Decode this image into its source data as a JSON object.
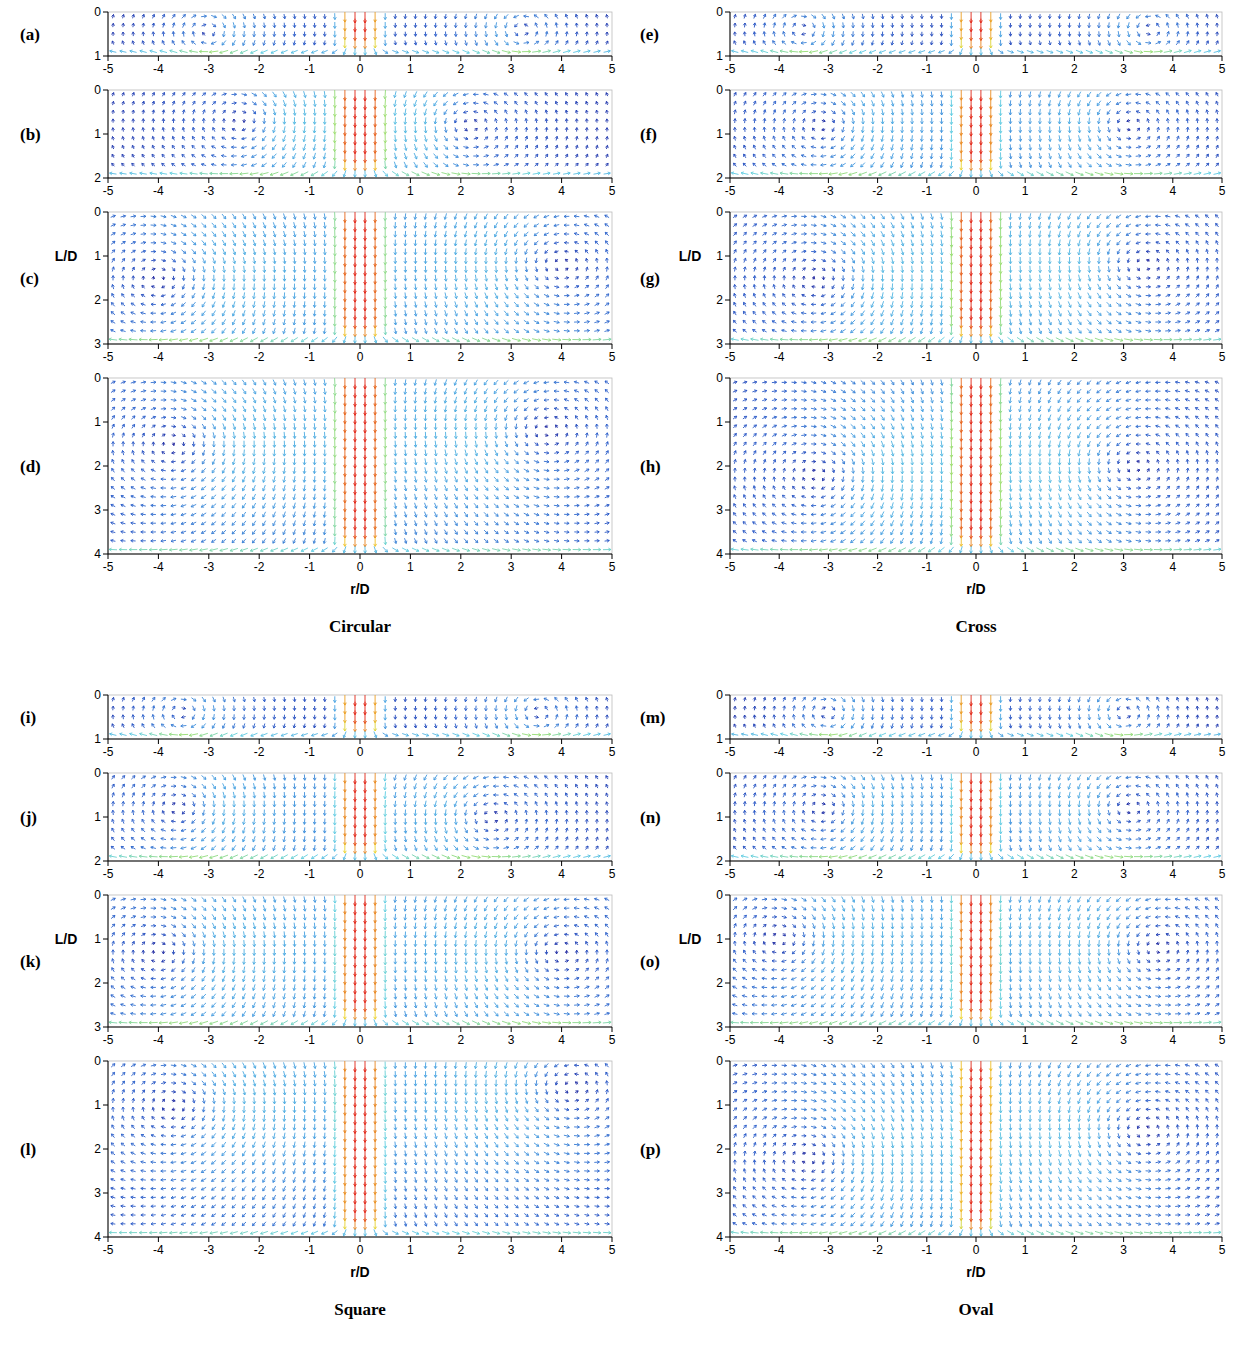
{
  "chart_data": [
    {
      "type": "vector_field",
      "title": "Circular",
      "xlabel": "r/D",
      "ylabel": "L/D",
      "panels": [
        {
          "label": "(a)",
          "xlim": [
            -5,
            5
          ],
          "ylim": [
            0,
            1
          ],
          "xticks": [
            -5,
            -4,
            -3,
            -2,
            -1,
            0,
            1,
            2,
            3,
            4,
            5
          ],
          "yticks": [
            0,
            1
          ],
          "jet": [
            -0.45,
            0.45
          ],
          "vortices": [
            {
              "r": -3,
              "l": 0.45
            },
            {
              "r": 3.2,
              "l": 0.4
            }
          ]
        },
        {
          "label": "(b)",
          "xlim": [
            -5,
            5
          ],
          "ylim": [
            0,
            2
          ],
          "xticks": [
            -5,
            -4,
            -3,
            -2,
            -1,
            0,
            1,
            2,
            3,
            4,
            5
          ],
          "yticks": [
            0,
            1,
            2
          ],
          "jet": [
            -0.5,
            0.5
          ],
          "vortices": [
            {
              "r": -2.2,
              "l": 0.7
            },
            {
              "r": 2.0,
              "l": 0.8
            }
          ]
        },
        {
          "label": "(c)",
          "xlim": [
            -5,
            5
          ],
          "ylim": [
            0,
            3
          ],
          "xticks": [
            -5,
            -4,
            -3,
            -2,
            -1,
            0,
            1,
            2,
            3,
            4,
            5
          ],
          "yticks": [
            0,
            1,
            2,
            3
          ],
          "jet": [
            -0.5,
            0.5
          ],
          "vortices": [
            {
              "r": -3.8,
              "l": 1.5
            },
            {
              "r": 3.8,
              "l": 1.2
            }
          ]
        },
        {
          "label": "(d)",
          "xlim": [
            -5,
            5
          ],
          "ylim": [
            0,
            4
          ],
          "xticks": [
            -5,
            -4,
            -3,
            -2,
            -1,
            0,
            1,
            2,
            3,
            4,
            5
          ],
          "yticks": [
            0,
            1,
            2,
            3,
            4
          ],
          "jet": [
            -0.5,
            0.5
          ],
          "vortices": [
            {
              "r": -3.5,
              "l": 1.5
            },
            {
              "r": 3.5,
              "l": 1.2
            }
          ]
        }
      ]
    },
    {
      "type": "vector_field",
      "title": "Cross",
      "xlabel": "r/D",
      "ylabel": "L/D",
      "panels": [
        {
          "label": "(e)",
          "xlim": [
            -5,
            5
          ],
          "ylim": [
            0,
            1
          ],
          "xticks": [
            -5,
            -4,
            -3,
            -2,
            -1,
            0,
            1,
            2,
            3,
            4,
            5
          ],
          "yticks": [
            0,
            1
          ],
          "jet": [
            -0.45,
            0.45
          ],
          "vortices": [
            {
              "r": -3.5,
              "l": 0.4
            },
            {
              "r": 3.5,
              "l": 0.4
            }
          ]
        },
        {
          "label": "(f)",
          "xlim": [
            -5,
            5
          ],
          "ylim": [
            0,
            2
          ],
          "xticks": [
            -5,
            -4,
            -3,
            -2,
            -1,
            0,
            1,
            2,
            3,
            4,
            5
          ],
          "yticks": [
            0,
            1,
            2
          ],
          "jet": [
            -0.45,
            0.45
          ],
          "vortices": [
            {
              "r": -3,
              "l": 0.8
            },
            {
              "r": 3,
              "l": 0.8
            }
          ]
        },
        {
          "label": "(g)",
          "xlim": [
            -5,
            5
          ],
          "ylim": [
            0,
            3
          ],
          "xticks": [
            -5,
            -4,
            -3,
            -2,
            -1,
            0,
            1,
            2,
            3,
            4,
            5
          ],
          "yticks": [
            0,
            1,
            2,
            3
          ],
          "jet": [
            -0.5,
            0.5
          ],
          "vortices": [
            {
              "r": -3,
              "l": 1.5
            },
            {
              "r": 3.2,
              "l": 1.2
            }
          ]
        },
        {
          "label": "(h)",
          "xlim": [
            -5,
            5
          ],
          "ylim": [
            0,
            4
          ],
          "xticks": [
            -5,
            -4,
            -3,
            -2,
            -1,
            0,
            1,
            2,
            3,
            4,
            5
          ],
          "yticks": [
            0,
            1,
            2,
            3,
            4
          ],
          "jet": [
            -0.5,
            0.5
          ],
          "vortices": [
            {
              "r": -3,
              "l": 2.2
            },
            {
              "r": 3,
              "l": 2.0
            }
          ]
        }
      ]
    },
    {
      "type": "vector_field",
      "title": "Square",
      "xlabel": "r/D",
      "ylabel": "L/D",
      "panels": [
        {
          "label": "(i)",
          "xlim": [
            -5,
            5
          ],
          "ylim": [
            0,
            1
          ],
          "xticks": [
            -5,
            -4,
            -3,
            -2,
            -1,
            0,
            1,
            2,
            3,
            4,
            5
          ],
          "yticks": [
            0,
            1
          ],
          "jet": [
            -0.45,
            0.45
          ],
          "vortices": [
            {
              "r": -3.5,
              "l": 0.4
            },
            {
              "r": 3.5,
              "l": 0.4
            }
          ]
        },
        {
          "label": "(j)",
          "xlim": [
            -5,
            5
          ],
          "ylim": [
            0,
            2
          ],
          "xticks": [
            -5,
            -4,
            -3,
            -2,
            -1,
            0,
            1,
            2,
            3,
            4,
            5
          ],
          "yticks": [
            0,
            1,
            2
          ],
          "jet": [
            -0.45,
            0.45
          ],
          "vortices": [
            {
              "r": -3.5,
              "l": 0.8
            },
            {
              "r": 2.5,
              "l": 1.0
            }
          ]
        },
        {
          "label": "(k)",
          "xlim": [
            -5,
            5
          ],
          "ylim": [
            0,
            3
          ],
          "xticks": [
            -5,
            -4,
            -3,
            -2,
            -1,
            0,
            1,
            2,
            3,
            4,
            5
          ],
          "yticks": [
            0,
            1,
            2,
            3
          ],
          "jet": [
            -0.45,
            0.45
          ],
          "vortices": [
            {
              "r": -3.8,
              "l": 1.3
            },
            {
              "r": 3.8,
              "l": 1.3
            }
          ]
        },
        {
          "label": "(l)",
          "xlim": [
            -5,
            5
          ],
          "ylim": [
            0,
            4
          ],
          "xticks": [
            -5,
            -4,
            -3,
            -2,
            -1,
            0,
            1,
            2,
            3,
            4,
            5
          ],
          "yticks": [
            0,
            1,
            2,
            3,
            4
          ],
          "jet": [
            -0.45,
            0.45
          ],
          "vortices": [
            {
              "r": -3.5,
              "l": 1.0
            },
            {
              "r": 4,
              "l": 0.6
            }
          ]
        }
      ]
    },
    {
      "type": "vector_field",
      "title": "Oval",
      "xlabel": "r/D",
      "ylabel": "L/D",
      "panels": [
        {
          "label": "(m)",
          "xlim": [
            -5,
            5
          ],
          "ylim": [
            0,
            1
          ],
          "xticks": [
            -5,
            -4,
            -3,
            -2,
            -1,
            0,
            1,
            2,
            3,
            4,
            5
          ],
          "yticks": [
            0,
            1
          ],
          "jet": [
            -0.45,
            0.45
          ],
          "vortices": [
            {
              "r": -3,
              "l": 0.4
            },
            {
              "r": 3,
              "l": 0.4
            }
          ]
        },
        {
          "label": "(n)",
          "xlim": [
            -5,
            5
          ],
          "ylim": [
            0,
            2
          ],
          "xticks": [
            -5,
            -4,
            -3,
            -2,
            -1,
            0,
            1,
            2,
            3,
            4,
            5
          ],
          "yticks": [
            0,
            1,
            2
          ],
          "jet": [
            -0.45,
            0.45
          ],
          "vortices": [
            {
              "r": -3,
              "l": 0.8
            },
            {
              "r": 3,
              "l": 0.8
            }
          ]
        },
        {
          "label": "(o)",
          "xlim": [
            -5,
            5
          ],
          "ylim": [
            0,
            3
          ],
          "xticks": [
            -5,
            -4,
            -3,
            -2,
            -1,
            0,
            1,
            2,
            3,
            4,
            5
          ],
          "yticks": [
            0,
            1,
            2,
            3
          ],
          "jet": [
            -0.45,
            0.45
          ],
          "vortices": [
            {
              "r": -3.8,
              "l": 1.0
            },
            {
              "r": 3.5,
              "l": 1.2
            }
          ]
        },
        {
          "label": "(p)",
          "xlim": [
            -5,
            5
          ],
          "ylim": [
            0,
            4
          ],
          "xticks": [
            -5,
            -4,
            -3,
            -2,
            -1,
            0,
            1,
            2,
            3,
            4,
            5
          ],
          "yticks": [
            0,
            1,
            2,
            3,
            4
          ],
          "jet": [
            -0.4,
            0.4
          ],
          "vortices": [
            {
              "r": -3.2,
              "l": 2.2
            },
            {
              "r": 3.2,
              "l": 1.6
            }
          ]
        }
      ]
    }
  ]
}
